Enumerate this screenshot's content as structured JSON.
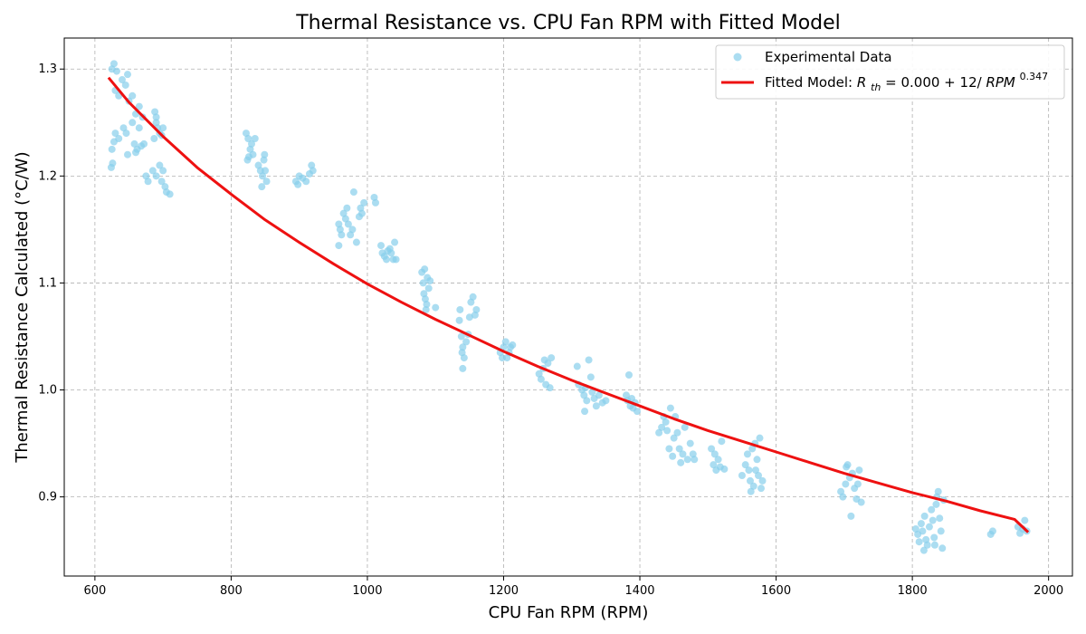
{
  "chart_data": {
    "type": "scatter",
    "title": "Thermal Resistance vs. CPU Fan RPM with Fitted Model",
    "xlabel": "CPU Fan RPM (RPM)",
    "ylabel": "Thermal Resistance Calculated (°C/W)",
    "xlim": [
      555,
      2035
    ],
    "ylim": [
      0.826,
      1.329
    ],
    "x_ticks": [
      600,
      800,
      1000,
      1200,
      1400,
      1600,
      1800,
      2000
    ],
    "y_ticks": [
      0.9,
      1.0,
      1.1,
      1.2,
      1.3
    ],
    "x_tick_labels": [
      "600",
      "800",
      "1000",
      "1200",
      "1400",
      "1600",
      "1800",
      "2000"
    ],
    "y_tick_labels": [
      "0.9",
      "1.0",
      "1.1",
      "1.2",
      "1.3"
    ],
    "grid": true,
    "legend_position": "top-right",
    "legend": {
      "scatter_label": "Experimental Data",
      "fit_label_prefix": "Fitted Model: ",
      "fit_label_R": "R",
      "fit_label_sub": "th",
      "fit_label_mid": " = 0.000 + 12/",
      "fit_label_var": "RPM",
      "fit_label_exp": "0.347"
    },
    "colors": {
      "scatter": "#87ceeb",
      "fit": "#ee1111",
      "grid": "#b0b0b0"
    },
    "series": [
      {
        "name": "Experimental Data",
        "type": "scatter",
        "points": [
          [
            625,
            1.3
          ],
          [
            628,
            1.305
          ],
          [
            632,
            1.298
          ],
          [
            630,
            1.28
          ],
          [
            635,
            1.275
          ],
          [
            640,
            1.29
          ],
          [
            645,
            1.285
          ],
          [
            648,
            1.295
          ],
          [
            650,
            1.27
          ],
          [
            625,
            1.225
          ],
          [
            628,
            1.232
          ],
          [
            630,
            1.24
          ],
          [
            626,
            1.212
          ],
          [
            624,
            1.208
          ],
          [
            635,
            1.235
          ],
          [
            642,
            1.245
          ],
          [
            648,
            1.22
          ],
          [
            646,
            1.24
          ],
          [
            655,
            1.25
          ],
          [
            660,
            1.258
          ],
          [
            665,
            1.245
          ],
          [
            670,
            1.255
          ],
          [
            658,
            1.23
          ],
          [
            662,
            1.225
          ],
          [
            668,
            1.228
          ],
          [
            672,
            1.23
          ],
          [
            660,
            1.222
          ],
          [
            665,
            1.265
          ],
          [
            655,
            1.275
          ],
          [
            675,
            1.2
          ],
          [
            678,
            1.195
          ],
          [
            685,
            1.205
          ],
          [
            690,
            1.2
          ],
          [
            695,
            1.21
          ],
          [
            698,
            1.195
          ],
          [
            700,
            1.205
          ],
          [
            703,
            1.19
          ],
          [
            705,
            1.185
          ],
          [
            710,
            1.183
          ],
          [
            688,
            1.26
          ],
          [
            690,
            1.25
          ],
          [
            692,
            1.245
          ],
          [
            695,
            1.24
          ],
          [
            698,
            1.238
          ],
          [
            700,
            1.245
          ],
          [
            690,
            1.255
          ],
          [
            687,
            1.235
          ],
          [
            822,
            1.24
          ],
          [
            825,
            1.235
          ],
          [
            828,
            1.225
          ],
          [
            830,
            1.23
          ],
          [
            826,
            1.218
          ],
          [
            824,
            1.215
          ],
          [
            832,
            1.22
          ],
          [
            835,
            1.235
          ],
          [
            840,
            1.21
          ],
          [
            843,
            1.205
          ],
          [
            846,
            1.2
          ],
          [
            848,
            1.215
          ],
          [
            850,
            1.205
          ],
          [
            845,
            1.19
          ],
          [
            852,
            1.195
          ],
          [
            849,
            1.22
          ],
          [
            895,
            1.195
          ],
          [
            900,
            1.2
          ],
          [
            905,
            1.198
          ],
          [
            910,
            1.195
          ],
          [
            915,
            1.202
          ],
          [
            918,
            1.21
          ],
          [
            920,
            1.205
          ],
          [
            898,
            1.192
          ],
          [
            958,
            1.155
          ],
          [
            960,
            1.15
          ],
          [
            962,
            1.145
          ],
          [
            965,
            1.165
          ],
          [
            968,
            1.16
          ],
          [
            970,
            1.17
          ],
          [
            972,
            1.155
          ],
          [
            975,
            1.145
          ],
          [
            978,
            1.15
          ],
          [
            980,
            1.185
          ],
          [
            984,
            1.138
          ],
          [
            988,
            1.162
          ],
          [
            990,
            1.17
          ],
          [
            992,
            1.165
          ],
          [
            995,
            1.175
          ],
          [
            958,
            1.135
          ],
          [
            1010,
            1.18
          ],
          [
            1012,
            1.175
          ],
          [
            1020,
            1.135
          ],
          [
            1022,
            1.128
          ],
          [
            1025,
            1.125
          ],
          [
            1028,
            1.122
          ],
          [
            1030,
            1.13
          ],
          [
            1033,
            1.132
          ],
          [
            1035,
            1.128
          ],
          [
            1038,
            1.122
          ],
          [
            1040,
            1.138
          ],
          [
            1042,
            1.122
          ],
          [
            1080,
            1.11
          ],
          [
            1082,
            1.1
          ],
          [
            1083,
            1.09
          ],
          [
            1085,
            1.085
          ],
          [
            1086,
            1.075
          ],
          [
            1088,
            1.105
          ],
          [
            1090,
            1.095
          ],
          [
            1092,
            1.102
          ],
          [
            1084,
            1.113
          ],
          [
            1087,
            1.08
          ],
          [
            1100,
            1.077
          ],
          [
            1135,
            1.065
          ],
          [
            1138,
            1.05
          ],
          [
            1140,
            1.04
          ],
          [
            1142,
            1.03
          ],
          [
            1136,
            1.075
          ],
          [
            1139,
            1.035
          ],
          [
            1145,
            1.045
          ],
          [
            1148,
            1.052
          ],
          [
            1150,
            1.068
          ],
          [
            1152,
            1.082
          ],
          [
            1155,
            1.087
          ],
          [
            1158,
            1.07
          ],
          [
            1160,
            1.075
          ],
          [
            1140,
            1.02
          ],
          [
            1195,
            1.035
          ],
          [
            1198,
            1.03
          ],
          [
            1200,
            1.04
          ],
          [
            1203,
            1.045
          ],
          [
            1205,
            1.03
          ],
          [
            1208,
            1.035
          ],
          [
            1210,
            1.04
          ],
          [
            1213,
            1.042
          ],
          [
            1252,
            1.015
          ],
          [
            1255,
            1.01
          ],
          [
            1258,
            1.02
          ],
          [
            1260,
            1.028
          ],
          [
            1262,
            1.005
          ],
          [
            1265,
            1.025
          ],
          [
            1268,
            1.002
          ],
          [
            1270,
            1.03
          ],
          [
            1308,
            1.022
          ],
          [
            1310,
            1.005
          ],
          [
            1315,
            1.0
          ],
          [
            1318,
            0.995
          ],
          [
            1320,
            1.002
          ],
          [
            1322,
            0.99
          ],
          [
            1325,
            1.028
          ],
          [
            1328,
            1.012
          ],
          [
            1330,
            0.998
          ],
          [
            1333,
            0.992
          ],
          [
            1336,
            0.985
          ],
          [
            1340,
            0.995
          ],
          [
            1345,
            0.988
          ],
          [
            1350,
            0.99
          ],
          [
            1319,
            0.98
          ],
          [
            1380,
            0.995
          ],
          [
            1382,
            0.99
          ],
          [
            1384,
            1.014
          ],
          [
            1386,
            0.985
          ],
          [
            1388,
            0.992
          ],
          [
            1390,
            0.983
          ],
          [
            1393,
            0.988
          ],
          [
            1396,
            0.98
          ],
          [
            1428,
            0.96
          ],
          [
            1432,
            0.965
          ],
          [
            1435,
            0.975
          ],
          [
            1438,
            0.97
          ],
          [
            1440,
            0.962
          ],
          [
            1443,
            0.945
          ],
          [
            1445,
            0.983
          ],
          [
            1448,
            0.938
          ],
          [
            1450,
            0.955
          ],
          [
            1452,
            0.975
          ],
          [
            1455,
            0.96
          ],
          [
            1458,
            0.945
          ],
          [
            1460,
            0.932
          ],
          [
            1463,
            0.94
          ],
          [
            1466,
            0.965
          ],
          [
            1470,
            0.935
          ],
          [
            1474,
            0.95
          ],
          [
            1478,
            0.94
          ],
          [
            1480,
            0.935
          ],
          [
            1505,
            0.945
          ],
          [
            1508,
            0.93
          ],
          [
            1510,
            0.94
          ],
          [
            1512,
            0.925
          ],
          [
            1515,
            0.935
          ],
          [
            1518,
            0.928
          ],
          [
            1520,
            0.952
          ],
          [
            1524,
            0.926
          ],
          [
            1550,
            0.92
          ],
          [
            1555,
            0.93
          ],
          [
            1558,
            0.94
          ],
          [
            1560,
            0.925
          ],
          [
            1562,
            0.915
          ],
          [
            1565,
            0.945
          ],
          [
            1567,
            0.91
          ],
          [
            1570,
            0.925
          ],
          [
            1572,
            0.935
          ],
          [
            1574,
            0.92
          ],
          [
            1576,
            0.955
          ],
          [
            1578,
            0.908
          ],
          [
            1580,
            0.915
          ],
          [
            1563,
            0.905
          ],
          [
            1569,
            0.95
          ],
          [
            1695,
            0.905
          ],
          [
            1698,
            0.9
          ],
          [
            1702,
            0.912
          ],
          [
            1705,
            0.93
          ],
          [
            1708,
            0.918
          ],
          [
            1710,
            0.882
          ],
          [
            1712,
            0.922
          ],
          [
            1715,
            0.908
          ],
          [
            1718,
            0.898
          ],
          [
            1720,
            0.912
          ],
          [
            1722,
            0.925
          ],
          [
            1725,
            0.895
          ],
          [
            1703,
            0.928
          ],
          [
            1805,
            0.87
          ],
          [
            1808,
            0.865
          ],
          [
            1810,
            0.858
          ],
          [
            1813,
            0.875
          ],
          [
            1815,
            0.868
          ],
          [
            1818,
            0.882
          ],
          [
            1820,
            0.86
          ],
          [
            1822,
            0.855
          ],
          [
            1825,
            0.872
          ],
          [
            1828,
            0.888
          ],
          [
            1830,
            0.878
          ],
          [
            1832,
            0.862
          ],
          [
            1835,
            0.893
          ],
          [
            1836,
            0.9
          ],
          [
            1838,
            0.905
          ],
          [
            1840,
            0.88
          ],
          [
            1842,
            0.868
          ],
          [
            1844,
            0.852
          ],
          [
            1846,
            0.897
          ],
          [
            1817,
            0.85
          ],
          [
            1833,
            0.855
          ],
          [
            1915,
            0.865
          ],
          [
            1918,
            0.868
          ],
          [
            1955,
            0.872
          ],
          [
            1958,
            0.866
          ],
          [
            1962,
            0.87
          ],
          [
            1965,
            0.878
          ],
          [
            1968,
            0.868
          ]
        ]
      },
      {
        "name": "Fitted Model",
        "type": "line",
        "points": [
          [
            620,
            1.292
          ],
          [
            650,
            1.269
          ],
          [
            700,
            1.237
          ],
          [
            750,
            1.208
          ],
          [
            800,
            1.183
          ],
          [
            850,
            1.159
          ],
          [
            900,
            1.138
          ],
          [
            950,
            1.118
          ],
          [
            1000,
            1.099
          ],
          [
            1050,
            1.082
          ],
          [
            1100,
            1.066
          ],
          [
            1150,
            1.051
          ],
          [
            1200,
            1.036
          ],
          [
            1250,
            1.022
          ],
          [
            1300,
            1.009
          ],
          [
            1350,
            0.997
          ],
          [
            1400,
            0.985
          ],
          [
            1450,
            0.973
          ],
          [
            1500,
            0.962
          ],
          [
            1550,
            0.952
          ],
          [
            1600,
            0.942
          ],
          [
            1650,
            0.932
          ],
          [
            1700,
            0.922
          ],
          [
            1750,
            0.913
          ],
          [
            1800,
            0.904
          ],
          [
            1850,
            0.896
          ],
          [
            1900,
            0.887
          ],
          [
            1950,
            0.879
          ],
          [
            1970,
            0.867
          ]
        ]
      }
    ]
  }
}
